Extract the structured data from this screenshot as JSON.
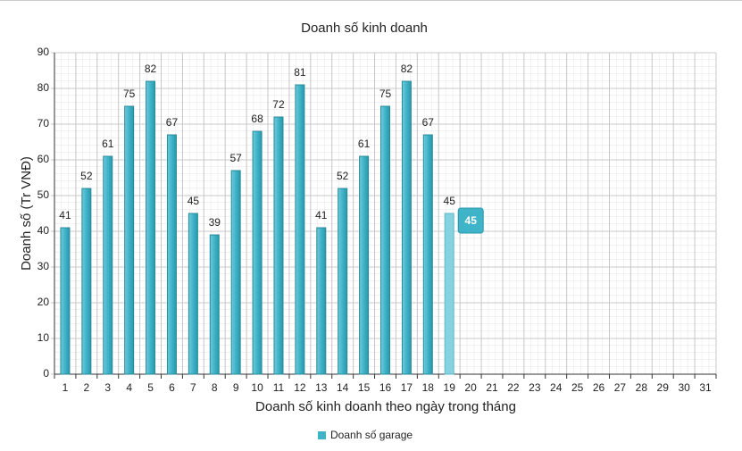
{
  "chart_data": {
    "type": "bar",
    "title": "Doanh số kinh doanh",
    "x_label": "Doanh số kinh doanh theo ngày trong tháng",
    "y_label": "Doanh số (Tr VNĐ)",
    "categories": [
      "1",
      "2",
      "3",
      "4",
      "5",
      "6",
      "7",
      "8",
      "9",
      "10",
      "11",
      "12",
      "13",
      "14",
      "15",
      "16",
      "17",
      "18",
      "19",
      "20",
      "21",
      "22",
      "23",
      "24",
      "25",
      "26",
      "27",
      "28",
      "29",
      "30",
      "31"
    ],
    "series": [
      {
        "name": "Doanh số garage",
        "color": "#3fb3c8",
        "values": [
          41,
          52,
          61,
          75,
          82,
          67,
          45,
          39,
          57,
          68,
          72,
          81,
          41,
          52,
          61,
          75,
          82,
          67,
          45,
          null,
          null,
          null,
          null,
          null,
          null,
          null,
          null,
          null,
          null,
          null,
          null
        ]
      }
    ],
    "ylim": [
      0,
      90
    ],
    "yticks": [
      0,
      10,
      20,
      30,
      40,
      50,
      60,
      70,
      80,
      90
    ],
    "grid": true,
    "legend": "bottom",
    "hover_category": "19"
  }
}
